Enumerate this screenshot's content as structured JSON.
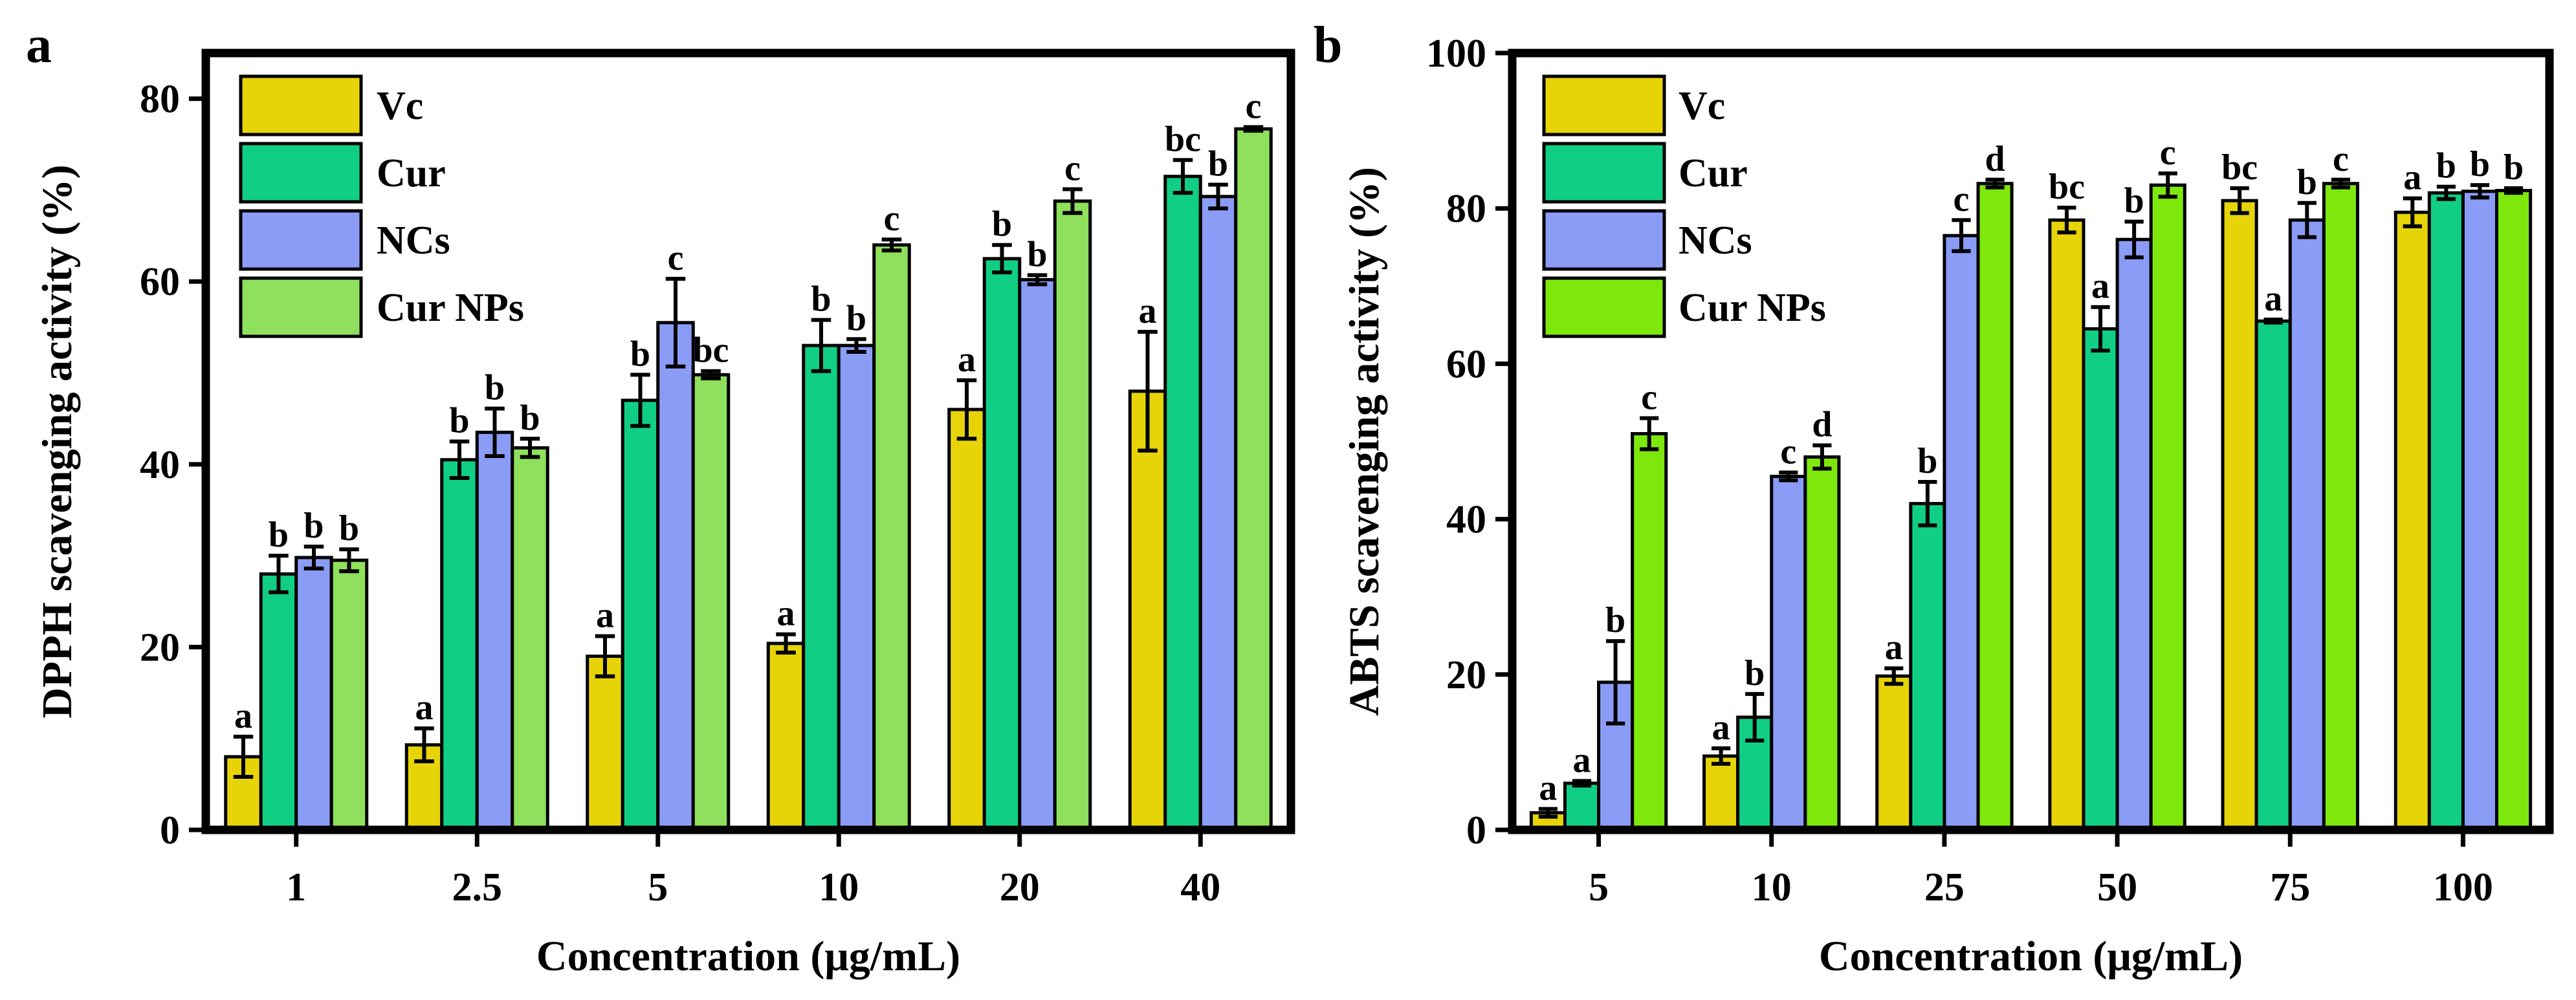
{
  "chart_data": [
    {
      "panel": "a",
      "type": "bar",
      "xlabel": "Concentration (μg/mL)",
      "ylabel": "DPPH scavenging activity  (%)",
      "ylim": [
        0,
        85
      ],
      "yticks": [
        0,
        20,
        40,
        60,
        80
      ],
      "legend_position": "top-left",
      "categories": [
        "1",
        "2.5",
        "5",
        "10",
        "20",
        "40"
      ],
      "series": [
        {
          "name": "Vc",
          "color": "#e6d408",
          "values": [
            8,
            9.3,
            19,
            20.4,
            46,
            48
          ],
          "errors": [
            2.2,
            1.8,
            2.2,
            1.0,
            3.2,
            6.5
          ],
          "labels": [
            "a",
            "a",
            "a",
            "a",
            "a",
            "a"
          ]
        },
        {
          "name": "Cur",
          "color": "#10cf85",
          "values": [
            28,
            40.5,
            47,
            53,
            62.5,
            71.5
          ],
          "errors": [
            2.0,
            2.0,
            2.8,
            2.8,
            1.5,
            1.8
          ],
          "labels": [
            "b",
            "b",
            "b",
            "b",
            "b",
            "bc"
          ]
        },
        {
          "name": "NCs",
          "color": "#8b9cf6",
          "values": [
            29.8,
            43.5,
            55.5,
            53,
            60.2,
            69.3
          ],
          "errors": [
            1.2,
            2.6,
            4.8,
            0.7,
            0.5,
            1.3
          ],
          "labels": [
            "b",
            "b",
            "c",
            "b",
            "b",
            "b"
          ]
        },
        {
          "name": "Cur NPs",
          "color": "#8fe05c",
          "values": [
            29.5,
            41.8,
            49.8,
            64,
            68.8,
            76.7
          ],
          "errors": [
            1.2,
            1.0,
            0.4,
            0.6,
            1.3,
            0.2
          ],
          "labels": [
            "b",
            "b",
            "bc",
            "c",
            "c",
            "c"
          ]
        }
      ]
    },
    {
      "panel": "b",
      "type": "bar",
      "xlabel": "Concentration (μg/mL)",
      "ylabel": "ABTS scavenging activity (%)",
      "ylim": [
        0,
        100
      ],
      "yticks": [
        0,
        20,
        40,
        60,
        80,
        100
      ],
      "legend_position": "top-left",
      "categories": [
        "5",
        "10",
        "25",
        "50",
        "75",
        "100"
      ],
      "series": [
        {
          "name": "Vc",
          "color": "#e6d408",
          "values": [
            2.2,
            9.5,
            19.8,
            78.5,
            81,
            79.5
          ],
          "errors": [
            0.5,
            1.0,
            1.0,
            1.6,
            1.6,
            1.8
          ],
          "labels": [
            "a",
            "a",
            "a",
            "bc",
            "bc",
            "a"
          ]
        },
        {
          "name": "Cur",
          "color": "#10cf85",
          "values": [
            6,
            14.5,
            42,
            64.5,
            65.5,
            82
          ],
          "errors": [
            0.3,
            3.0,
            2.8,
            2.8,
            0.2,
            0.8
          ],
          "labels": [
            "a",
            "b",
            "b",
            "a",
            "a",
            "b"
          ]
        },
        {
          "name": "NCs",
          "color": "#8b9cf6",
          "values": [
            19,
            45.5,
            76.5,
            76,
            78.5,
            82.2
          ],
          "errors": [
            5.3,
            0.5,
            2.0,
            2.3,
            2.2,
            0.8
          ],
          "labels": [
            "b",
            "c",
            "c",
            "b",
            "b",
            "b"
          ]
        },
        {
          "name": "Cur NPs",
          "color": "#7ee80c",
          "values": [
            51,
            48,
            83.2,
            83,
            83.2,
            82.3
          ],
          "errors": [
            2.0,
            1.5,
            0.5,
            1.5,
            0.5,
            0.3
          ],
          "labels": [
            "c",
            "d",
            "d",
            "c",
            "c",
            "b"
          ]
        }
      ]
    }
  ]
}
